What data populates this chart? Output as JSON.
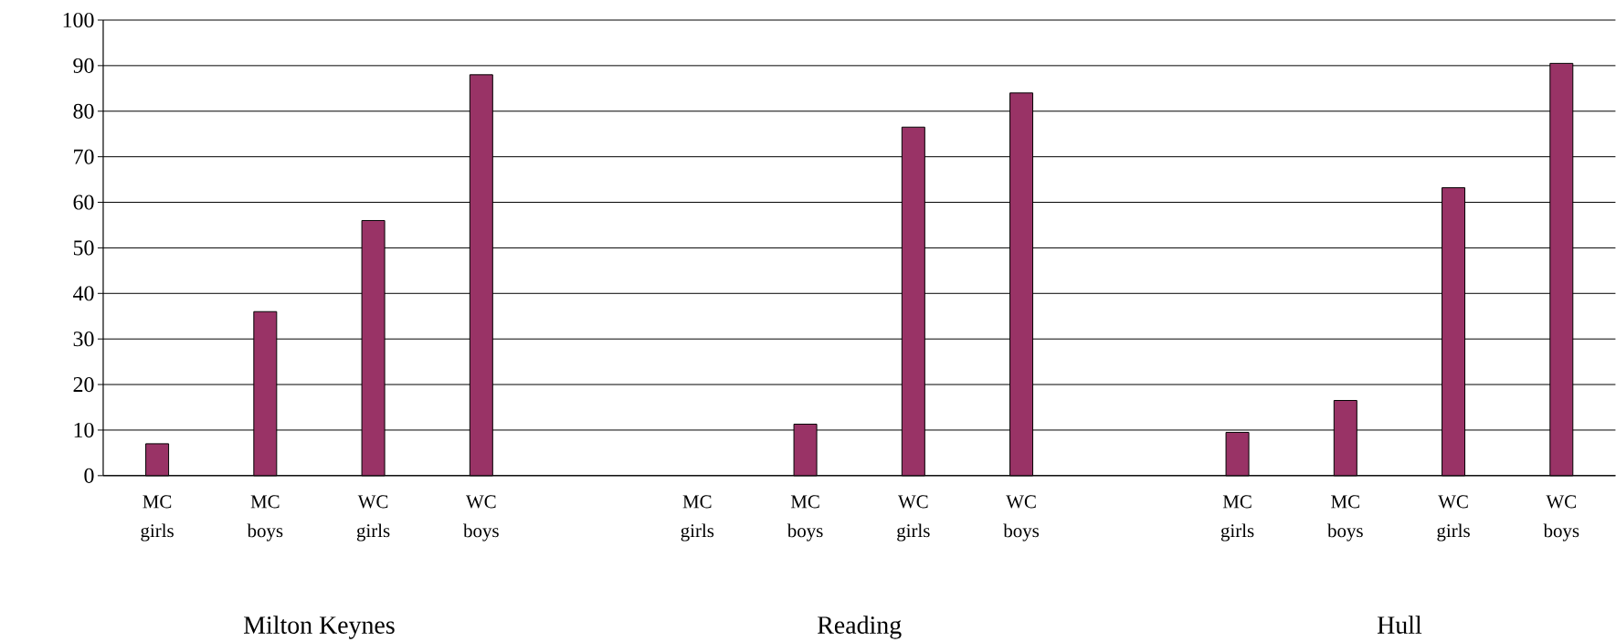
{
  "chart_data": {
    "type": "bar",
    "categories": [
      "MC girls",
      "MC boys",
      "WC girls",
      "WC boys",
      null,
      "MC girls",
      "MC boys",
      "WC girls",
      "WC boys",
      null,
      "MC girls",
      "MC boys",
      "WC girls",
      "WC boys"
    ],
    "values": [
      7,
      36,
      56,
      88,
      null,
      null,
      11.3,
      76.5,
      84,
      null,
      9.5,
      16.5,
      63.2,
      90.5
    ],
    "color": "#993366",
    "ylim": [
      0,
      100
    ],
    "yticks": [
      0,
      10,
      20,
      30,
      40,
      50,
      60,
      70,
      80,
      90,
      100
    ],
    "grid": "y",
    "annotations": [
      "Milton Keynes",
      "Reading",
      "Hull"
    ]
  }
}
